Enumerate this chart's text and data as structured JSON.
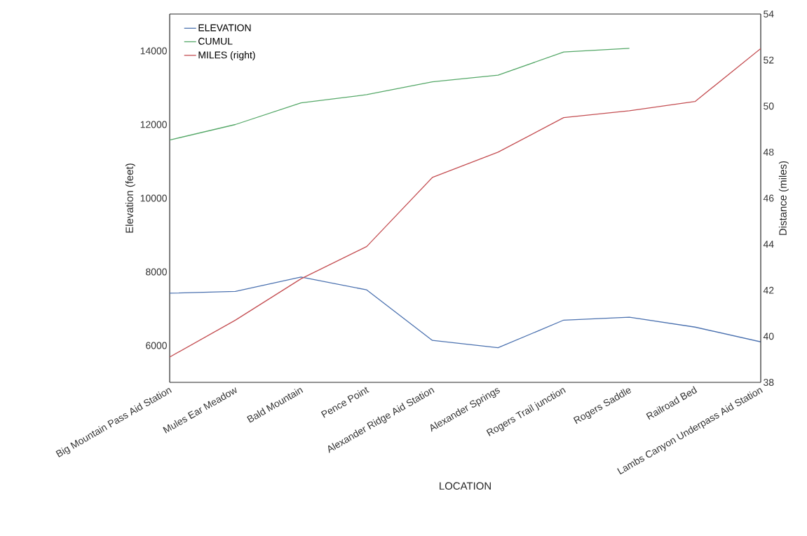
{
  "chart_data": {
    "type": "line",
    "xlabel": "LOCATION",
    "ylabel": "Elevation (feet)",
    "y2label": "Distance (miles)",
    "categories": [
      "Big Mountain Pass Aid Station",
      "Mules Ear Meadow",
      "Bald Mountain",
      "Pence Point",
      "Alexander Ridge Aid Station",
      "Alexander Springs",
      "Rogers Trail junction",
      "Rogers Saddle",
      "Railroad Bed",
      "Lambs Canyon Underpass Aid Station"
    ],
    "series": [
      {
        "name": "ELEVATION",
        "color": "#4c72b0",
        "values": [
          7420,
          7470,
          7860,
          7510,
          6140,
          5940,
          6690,
          6770,
          6500,
          6100
        ]
      },
      {
        "name": "CUMUL",
        "color": "#55a868",
        "values": [
          11580,
          12000,
          12590,
          12810,
          13160,
          13340,
          13970,
          14070,
          null,
          null
        ]
      },
      {
        "name": "MILES (right)",
        "color": "#c44e52",
        "axis": "y2",
        "values": [
          39.1,
          40.7,
          42.5,
          43.9,
          46.9,
          48.0,
          49.5,
          49.8,
          50.2,
          52.5
        ]
      }
    ],
    "ylim": [
      5000,
      15000
    ],
    "yticks": [
      6000,
      8000,
      10000,
      12000,
      14000
    ],
    "y2lim": [
      38,
      54
    ],
    "y2ticks": [
      38,
      40,
      42,
      44,
      46,
      48,
      50,
      52,
      54
    ],
    "legend": "top left",
    "marker": "none",
    "line_style": "solid"
  }
}
